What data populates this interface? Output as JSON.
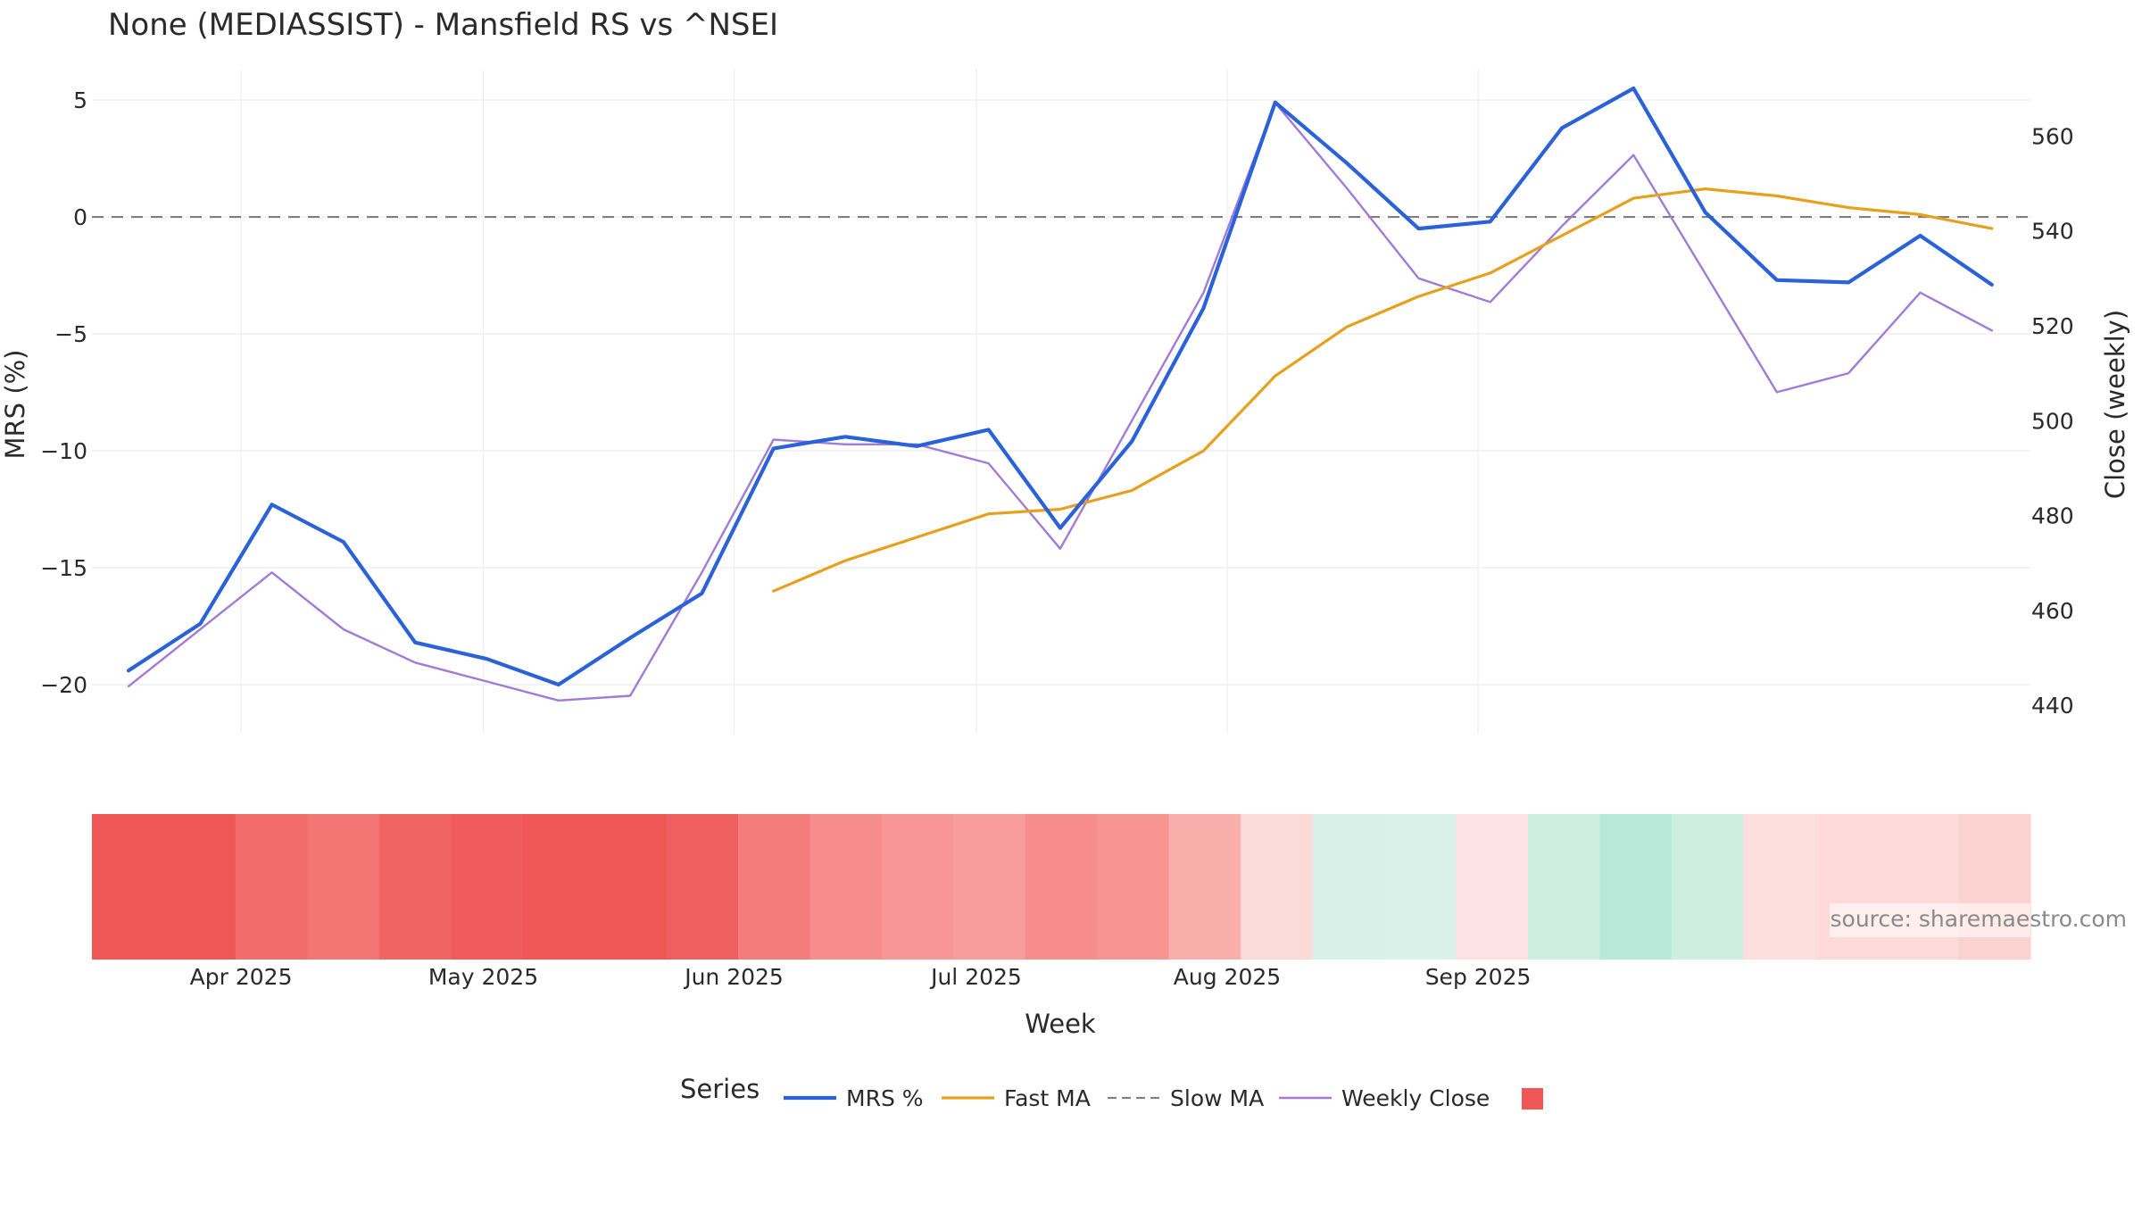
{
  "chart_data": {
    "type": "line",
    "title": "None (MEDIASSIST) - Mansfield RS vs ^NSEI",
    "xlabel": "Week",
    "ylabel_left": "MRS (%)",
    "ylabel_right": "Close (weekly)",
    "source": "source: sharemaestro.com",
    "legend_title": "Series",
    "ylim_left": [
      -22.1,
      6.3
    ],
    "ylim_right": [
      434,
      574
    ],
    "yticks_left": [
      5,
      0,
      -5,
      -10,
      -15,
      -20
    ],
    "yticks_right": [
      560,
      540,
      520,
      500,
      480,
      460,
      440
    ],
    "x_ticks": [
      "Apr 2025",
      "May 2025",
      "Jun 2025",
      "Jul 2025",
      "Aug 2025",
      "Sep 2025"
    ],
    "weeks": [
      0,
      1,
      2,
      3,
      4,
      5,
      6,
      7,
      8,
      9,
      10,
      11,
      12,
      13,
      14,
      15,
      16,
      17,
      18,
      19,
      20,
      21,
      22,
      23,
      24,
      25,
      26
    ],
    "series": [
      {
        "name": "MRS %",
        "color": "#2b62d9",
        "axis": "left",
        "values": [
          -19.4,
          -17.4,
          -12.3,
          -13.9,
          -18.2,
          -18.9,
          -20.0,
          -18.0,
          -16.1,
          -9.9,
          -9.4,
          -9.8,
          -9.1,
          -13.3,
          -9.6,
          -3.9,
          4.9,
          2.3,
          -0.5,
          -0.2,
          3.8,
          5.5,
          0.2,
          -2.7,
          -2.8,
          -0.8,
          -2.9
        ]
      },
      {
        "name": "Fast MA",
        "color": "#e5a11e",
        "axis": "left",
        "values": [
          null,
          null,
          null,
          null,
          null,
          null,
          null,
          null,
          null,
          -16.0,
          -14.7,
          -13.7,
          -12.7,
          -12.5,
          -11.7,
          -10.0,
          -6.8,
          -4.7,
          -3.4,
          -2.4,
          -0.8,
          0.8,
          1.2,
          0.9,
          0.4,
          0.1,
          -0.5
        ]
      },
      {
        "name": "Slow MA",
        "color": "#7f7f7f",
        "axis": "left",
        "dash": true,
        "values": [
          0,
          0,
          0,
          0,
          0,
          0,
          0,
          0,
          0,
          0,
          0,
          0,
          0,
          0,
          0,
          0,
          0,
          0,
          0,
          0,
          0,
          0,
          0,
          0,
          0,
          0,
          0
        ]
      },
      {
        "name": "Weekly Close",
        "color": "#a07bd8",
        "axis": "right",
        "values": [
          444,
          456,
          468,
          456,
          449,
          445,
          441,
          442,
          468,
          496,
          495,
          495,
          491,
          473,
          500,
          527,
          567,
          549,
          530,
          525,
          541,
          556,
          531,
          506,
          510,
          527,
          519
        ]
      }
    ],
    "heatmap": {
      "name": "MRS heat strip",
      "colors": [
        "#ef5757",
        "#ef5757",
        "#f26b6b",
        "#f37674",
        "#f16464",
        "#f05c5c",
        "#ef5757",
        "#ef5757",
        "#f05f5f",
        "#f47c7a",
        "#f68d8c",
        "#f79694",
        "#f89c9a",
        "#f68d8c",
        "#f79390",
        "#f9aeab",
        "#fbdad8",
        "#d8f1e8",
        "#d9f1e9",
        "#fce2e2",
        "#cfeee2",
        "#b8e9d8",
        "#cfeee2",
        "#fddfde",
        "#fdd9d8",
        "#fdd9d8",
        "#fcd2d1"
      ]
    },
    "legend_swatch_color": "#ef5757"
  }
}
